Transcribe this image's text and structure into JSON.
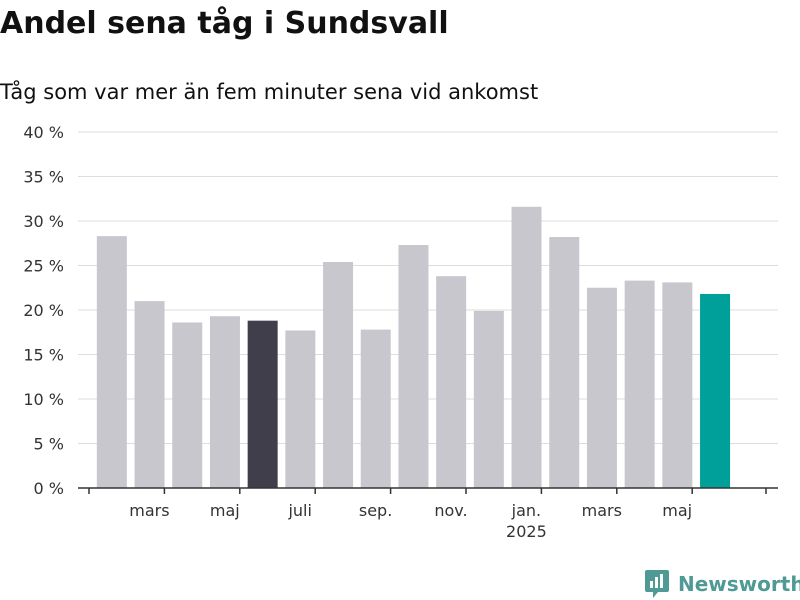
{
  "title": "Andel sena tåg i Sundsvall",
  "subtitle": "Tåg som var mer än fem minuter sena vid ankomst",
  "brand": {
    "name": "Newsworthy",
    "icon": "newsworthy-logo-icon",
    "color": "#4f9a94"
  },
  "colors": {
    "bar": "#c8c7ce",
    "highlight_dark": "#3f3e4a",
    "highlight_last": "#00a09a",
    "grid": "#dddddd",
    "axis": "#333333"
  },
  "chart_data": {
    "type": "bar",
    "ylim": [
      0,
      40
    ],
    "yticks": [
      0,
      5,
      10,
      15,
      20,
      25,
      30,
      35,
      40
    ],
    "ytick_suffix": " %",
    "grid": true,
    "legend": "none",
    "values": [
      28.3,
      21.0,
      18.6,
      19.3,
      18.8,
      17.7,
      25.4,
      17.8,
      27.3,
      23.8,
      19.9,
      31.6,
      28.2,
      22.5,
      23.3,
      23.1,
      21.8
    ],
    "highlight": {
      "4": "dark",
      "16": "last"
    },
    "x_tick_labels": [
      {
        "index": 1.5,
        "label": "mars",
        "sublabel": ""
      },
      {
        "index": 3.5,
        "label": "maj",
        "sublabel": ""
      },
      {
        "index": 5.5,
        "label": "juli",
        "sublabel": ""
      },
      {
        "index": 7.5,
        "label": "sep.",
        "sublabel": ""
      },
      {
        "index": 9.5,
        "label": "nov.",
        "sublabel": ""
      },
      {
        "index": 11.5,
        "label": "jan.",
        "sublabel": "2025"
      },
      {
        "index": 13.5,
        "label": "mars",
        "sublabel": ""
      },
      {
        "index": 15.5,
        "label": "maj",
        "sublabel": ""
      }
    ]
  }
}
